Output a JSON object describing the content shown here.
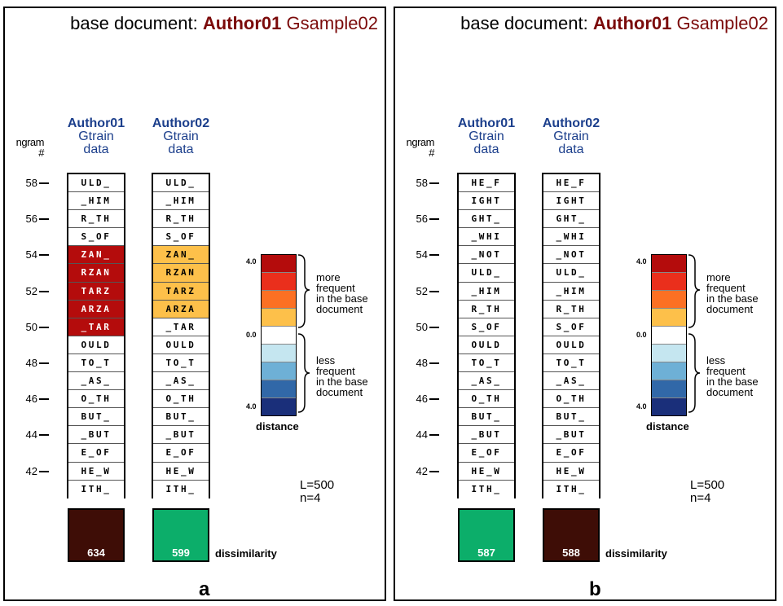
{
  "legend": {
    "colors": [
      "#b40c0c",
      "#ea2f1c",
      "#fc7023",
      "#fdc04a",
      "#ffffff",
      "#c5e6f0",
      "#6eb0d6",
      "#3168a8",
      "#1a2f7a"
    ],
    "tick_top": "4.0",
    "tick_mid": "0.0",
    "tick_bottom": "4.0",
    "more_text": "more\nfrequent\nin the base\ndocument",
    "less_text": "less\nfrequent\nin the base\ndocument",
    "distance_label": "distance"
  },
  "panels": [
    {
      "title_prefix": "base document: ",
      "title_author": "Author01",
      "title_sample": " Gsample02",
      "ngram_label": "ngram\n#",
      "y_ticks": [
        "58",
        "56",
        "54",
        "52",
        "50",
        "48",
        "46",
        "44",
        "42"
      ],
      "columns": [
        {
          "author": "Author01",
          "line2": "Gtrain",
          "line3": "data",
          "cells": [
            "ULD_",
            "_HIM",
            "R_TH",
            "S_OF",
            "ZAN_",
            "RZAN",
            "TARZ",
            "ARZA",
            "_TAR",
            "OULD",
            "TO_T",
            "_AS_",
            "O_TH",
            "BUT_",
            "_BUT",
            "E_OF",
            "HE_W",
            "ITH_"
          ],
          "cell_levels": [
            0,
            0,
            0,
            0,
            4,
            4,
            4,
            4,
            4,
            0,
            0,
            0,
            0,
            0,
            0,
            0,
            0,
            0
          ],
          "dissimilarity": "634",
          "diss_color": "#3e0d06"
        },
        {
          "author": "Author02",
          "line2": "Gtrain",
          "line3": "data",
          "cells": [
            "ULD_",
            "_HIM",
            "R_TH",
            "S_OF",
            "ZAN_",
            "RZAN",
            "TARZ",
            "ARZA",
            "_TAR",
            "OULD",
            "TO_T",
            "_AS_",
            "O_TH",
            "BUT_",
            "_BUT",
            "E_OF",
            "HE_W",
            "ITH_"
          ],
          "cell_levels": [
            0,
            0,
            0,
            0,
            1,
            1,
            1,
            1,
            0,
            0,
            0,
            0,
            0,
            0,
            0,
            0,
            0,
            0
          ],
          "dissimilarity": "599",
          "diss_color": "#0cae6a"
        }
      ],
      "dissimilarity_label": "dissimilarity",
      "params_L": "L=500",
      "params_n": "n=4",
      "letter": "a"
    },
    {
      "title_prefix": "base document: ",
      "title_author": "Author01",
      "title_sample": " Gsample02",
      "ngram_label": "ngram\n#",
      "y_ticks": [
        "58",
        "56",
        "54",
        "52",
        "50",
        "48",
        "46",
        "44",
        "42"
      ],
      "columns": [
        {
          "author": "Author01",
          "line2": "Gtrain",
          "line3": "data",
          "cells": [
            "HE_F",
            "IGHT",
            "GHT_",
            "_WHI",
            "_NOT",
            "ULD_",
            "_HIM",
            "R_TH",
            "S_OF",
            "OULD",
            "TO_T",
            "_AS_",
            "O_TH",
            "BUT_",
            "_BUT",
            "E_OF",
            "HE_W",
            "ITH_"
          ],
          "cell_levels": [
            0,
            0,
            0,
            0,
            0,
            0,
            0,
            0,
            0,
            0,
            0,
            0,
            0,
            0,
            0,
            0,
            0,
            0
          ],
          "dissimilarity": "587",
          "diss_color": "#0cae6a"
        },
        {
          "author": "Author02",
          "line2": "Gtrain",
          "line3": "data",
          "cells": [
            "HE_F",
            "IGHT",
            "GHT_",
            "_WHI",
            "_NOT",
            "ULD_",
            "_HIM",
            "R_TH",
            "S_OF",
            "OULD",
            "TO_T",
            "_AS_",
            "O_TH",
            "BUT_",
            "_BUT",
            "E_OF",
            "HE_W",
            "ITH_"
          ],
          "cell_levels": [
            0,
            0,
            0,
            0,
            0,
            0,
            0,
            0,
            0,
            0,
            0,
            0,
            0,
            0,
            0,
            0,
            0,
            0
          ],
          "dissimilarity": "588",
          "diss_color": "#3e0d06"
        }
      ],
      "dissimilarity_label": "dissimilarity",
      "params_L": "L=500",
      "params_n": "n=4",
      "letter": "b"
    }
  ]
}
